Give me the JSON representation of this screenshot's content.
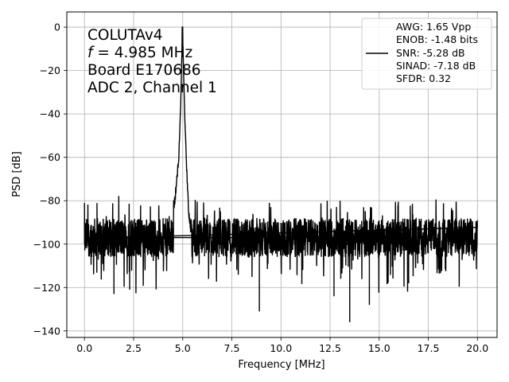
{
  "chart_data": {
    "type": "line",
    "xlabel": "Frequency [MHz]",
    "ylabel": "PSD [dB]",
    "xlim": [
      -0.9,
      21.0
    ],
    "ylim": [
      -143,
      7
    ],
    "x_ticks": [
      0.0,
      2.5,
      5.0,
      7.5,
      10.0,
      12.5,
      15.0,
      17.5,
      20.0
    ],
    "x_tick_labels": [
      "0.0",
      "2.5",
      "5.0",
      "7.5",
      "10.0",
      "12.5",
      "15.0",
      "17.5",
      "20.0"
    ],
    "y_ticks": [
      0,
      -20,
      -40,
      -60,
      -80,
      -100,
      -120,
      -140
    ],
    "y_tick_labels": [
      "0",
      "−20",
      "−40",
      "−60",
      "−80",
      "−100",
      "−120",
      "−140"
    ],
    "grid": true,
    "legend_position": "top-right",
    "annotation_lines": [
      "COLUTAv4",
      "f = 4.985 MHz",
      "Board E170686",
      "ADC 2, Channel 1"
    ],
    "series": [
      {
        "name": "AWG: 1.65 Vpp",
        "name_lines": [
          "AWG: 1.65 Vpp",
          "ENOB: -1.48 bits",
          "SNR: -5.28 dB",
          "SINAD: -7.18 dB",
          "SFDR: 0.32"
        ],
        "color": "#000000",
        "peak": {
          "x": 4.985,
          "y": 0
        },
        "noise_floor_mean": -97,
        "noise_band": [
          -108,
          -85
        ],
        "x": [
          0.0,
          0.5,
          1.0,
          1.4,
          1.5,
          2.2,
          2.3,
          3.0,
          3.5,
          4.0,
          4.3,
          4.6,
          4.8,
          4.9,
          4.985,
          5.1,
          5.2,
          5.3,
          5.5,
          6.0,
          7.0,
          8.5,
          8.9,
          9.5,
          10.0,
          11.0,
          12.0,
          12.7,
          13.0,
          13.5,
          14.0,
          14.5,
          15.0,
          16.0,
          16.5,
          17.0,
          18.0,
          19.0,
          20.0
        ],
        "y": [
          -81,
          -98,
          -97,
          -108,
          -123,
          -100,
          -121,
          -97,
          -99,
          -95,
          -90,
          -80,
          -60,
          -35,
          0,
          -40,
          -65,
          -85,
          -99,
          -97,
          -98,
          -100,
          -131,
          -98,
          -100,
          -99,
          -98,
          -124,
          -99,
          -136,
          -98,
          -128,
          -99,
          -98,
          -118,
          -99,
          -97,
          -98,
          -100
        ]
      }
    ]
  }
}
